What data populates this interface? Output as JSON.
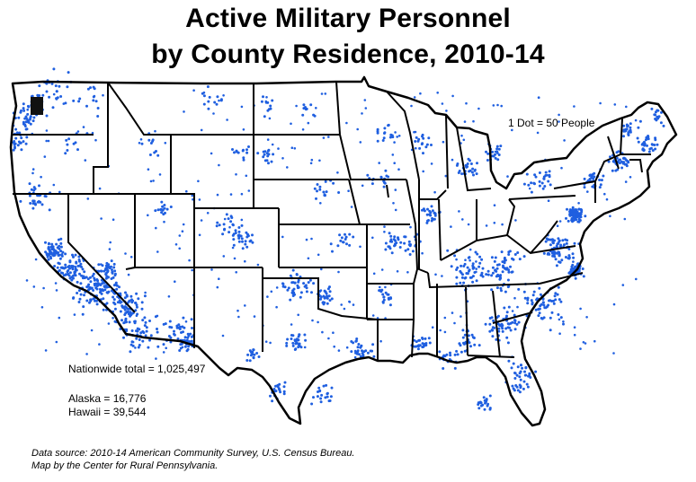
{
  "title_line1": "Active Military Personnel",
  "title_line2": "by County Residence, 2010-14",
  "legend": "1 Dot = 50 People",
  "nationwide_total": "Nationwide total = 1,025,497",
  "alaska": "Alaska = 16,776",
  "hawaii": "Hawaii = 39,544",
  "source_line1": "Data source: 2010-14 American Community Survey, U.S. Census Bureau.",
  "source_line2": "Map by the Center for Rural Pennsylvania.",
  "colors": {
    "dot": "#1f5fe0",
    "border": "#000000",
    "background": "#ffffff"
  }
}
